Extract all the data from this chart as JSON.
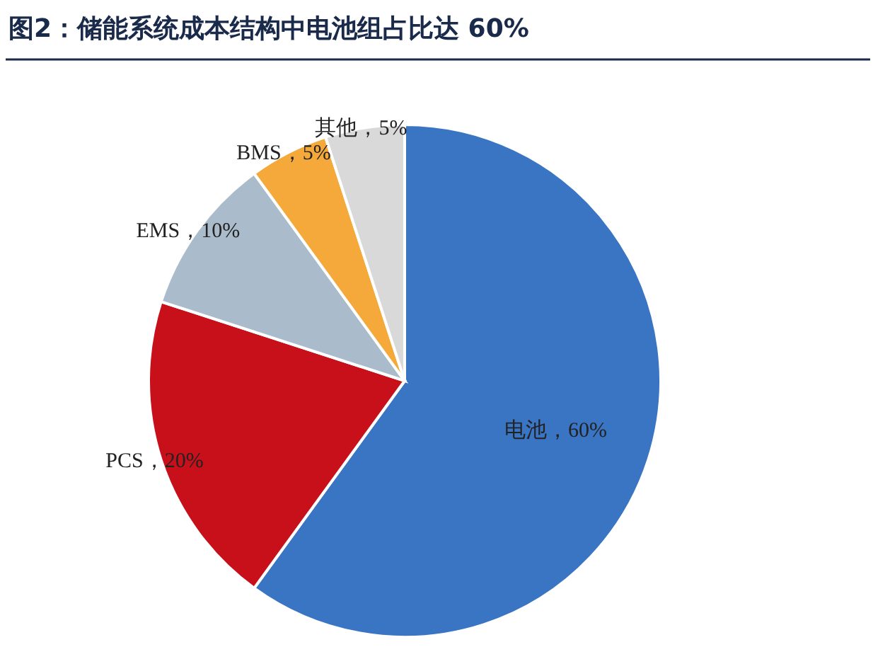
{
  "chart_data": {
    "type": "pie",
    "title": "图2：储能系统成本结构中电池组占比达 60%",
    "categories": [
      "电池",
      "PCS",
      "EMS",
      "BMS",
      "其他"
    ],
    "values": [
      60,
      20,
      10,
      5,
      5
    ],
    "value_labels": [
      "60%",
      "20%",
      "10%",
      "5%",
      "5%"
    ],
    "colors": [
      "#3a75c4",
      "#c8101a",
      "#aabccb",
      "#f5a93b",
      "#d9d9d9"
    ]
  }
}
